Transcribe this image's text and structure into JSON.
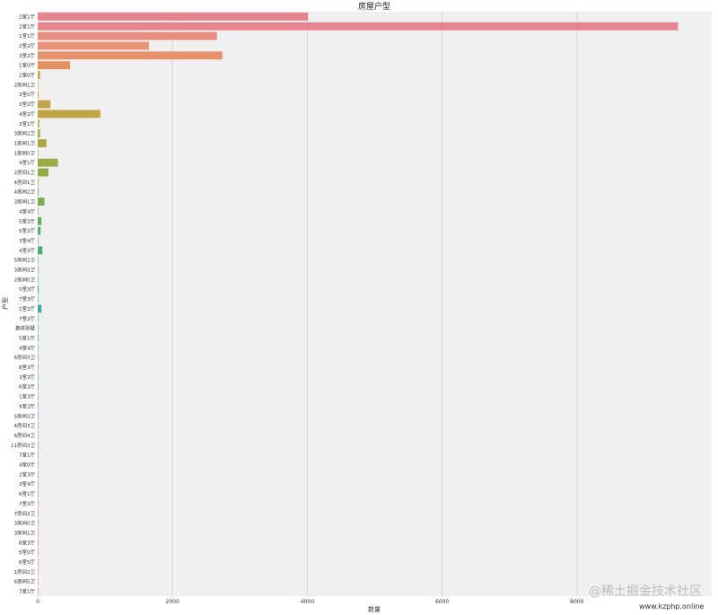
{
  "chart_data": {
    "type": "bar",
    "orientation": "horizontal",
    "title": "房屋户型",
    "xlabel": "数量",
    "ylabel": "户型",
    "xlim": [
      0,
      10000
    ],
    "x_ticks": [
      0,
      2000,
      4000,
      6000,
      8000
    ],
    "grid": true,
    "categories": [
      "2室1厅",
      "2室1厅",
      "1室1厅",
      "2室2厅",
      "3室2厅",
      "1室0厅",
      "2室0厅",
      "2房间1卫",
      "3室0厅",
      "3室2厅",
      "4室2厅",
      "3室1厅",
      "3房间2卫",
      "1房间1卫",
      "1房间0卫",
      "4室1厅",
      "2房间1卫",
      "4房间1卫",
      "4房间2卫",
      "3房间1卫",
      "4室4厅",
      "5室3厅",
      "5室2厅",
      "3室4厅",
      "4室3厅",
      "5房间2卫",
      "3房间3卫",
      "2房间0卫",
      "5室3厅",
      "7室3厅",
      "1室2厅",
      "7室2厅",
      "叠拼别墅",
      "5室1厅",
      "4室4厅",
      "6房间3卫",
      "8室3厅",
      "3室2厅",
      "6室3厅",
      "1室3厅",
      "9室2厅",
      "5房间3卫",
      "4房间3卫",
      "6房间4卫",
      "11房间3卫",
      "7室1厅",
      "4室0厅",
      "2室3厅",
      "3室4厅",
      "6室1厅",
      "7室3厅",
      "7房间2卫",
      "3房间0卫",
      "3房间1卫",
      "8室3厅",
      "5室0厅",
      "6室5厅",
      "1房间2卫",
      "6房间5卫",
      "7室1厅"
    ],
    "values": [
      4010,
      9500,
      2660,
      1650,
      2740,
      480,
      35,
      5,
      12,
      190,
      930,
      22,
      35,
      130,
      6,
      300,
      160,
      10,
      12,
      100,
      8,
      55,
      42,
      8,
      70,
      6,
      5,
      5,
      15,
      5,
      55,
      5,
      5,
      10,
      5,
      5,
      5,
      5,
      5,
      5,
      5,
      5,
      5,
      5,
      5,
      5,
      5,
      5,
      5,
      5,
      5,
      5,
      5,
      5,
      5,
      5,
      5,
      5,
      5,
      5
    ],
    "colors": [
      "#e8848f",
      "#e8848f",
      "#e88d80",
      "#e89377",
      "#e8916d",
      "#e39161",
      "#d79a57",
      "#cfa055",
      "#c9a350",
      "#c4a44a",
      "#bfa546",
      "#b8a645",
      "#b2a744",
      "#aba947",
      "#a4aa47",
      "#9caa47",
      "#94ab48",
      "#8cac4b",
      "#82ad4e",
      "#77ae52",
      "#6bae57",
      "#5eaf5e",
      "#55af67",
      "#4eaf70",
      "#4aae78",
      "#47ae80",
      "#45ad87",
      "#44ad8e",
      "#44ac94",
      "#44ab99",
      "#45aa9d",
      "#46a9a2",
      "#48a8a7",
      "#4aa6ac",
      "#4ca5b1",
      "#4ea3b6",
      "#52a1bb",
      "#569fc1",
      "#5a9cc6",
      "#609acc",
      "#6797d1",
      "#6f93d6",
      "#7a8fdb",
      "#868adc",
      "#9185dc",
      "#9c80dc",
      "#a67bdb",
      "#b077d8",
      "#ba73d4",
      "#c370cf",
      "#cb6dca",
      "#d36bc4",
      "#d96abe",
      "#de6ab6",
      "#e26bae",
      "#e66da6",
      "#e8709e",
      "#e97597",
      "#e97a91",
      "#e98090"
    ]
  },
  "watermark": {
    "main": "@稀土掘金技术社区",
    "site": "www.kzphp.online"
  }
}
